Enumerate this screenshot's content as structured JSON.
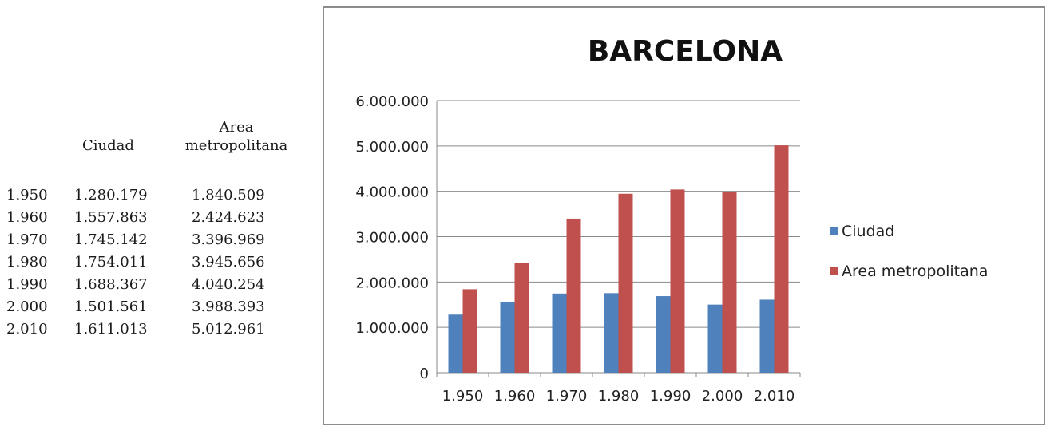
{
  "table": {
    "header_ciudad": "Ciudad",
    "header_area_line1": "Area",
    "header_area_line2": "metropolitana",
    "rows": [
      {
        "year": "1.950",
        "ciudad": "1.280.179",
        "area": "1.840.509"
      },
      {
        "year": "1.960",
        "ciudad": "1.557.863",
        "area": "2.424.623"
      },
      {
        "year": "1.970",
        "ciudad": "1.745.142",
        "area": "3.396.969"
      },
      {
        "year": "1.980",
        "ciudad": "1.754.011",
        "area": "3.945.656"
      },
      {
        "year": "1.990",
        "ciudad": "1.688.367",
        "area": "4.040.254"
      },
      {
        "year": "2.000",
        "ciudad": "1.501.561",
        "area": "3.988.393"
      },
      {
        "year": "2.010",
        "ciudad": "1.611.013",
        "area": "5.012.961"
      }
    ]
  },
  "chart_data": {
    "type": "bar",
    "title": "BARCELONA",
    "categories": [
      "1.950",
      "1.960",
      "1.970",
      "1.980",
      "1.990",
      "2.000",
      "2.010"
    ],
    "series": [
      {
        "name": "Ciudad",
        "color": "#4f81bd",
        "values": [
          1280179,
          1557863,
          1745142,
          1754011,
          1688367,
          1501561,
          1611013
        ]
      },
      {
        "name": "Area metropolitana",
        "color": "#c0504d",
        "values": [
          1840509,
          2424623,
          3396969,
          3945656,
          4040254,
          3988393,
          5012961
        ]
      }
    ],
    "ylim": [
      0,
      6000000
    ],
    "yticks": [
      0,
      1000000,
      2000000,
      3000000,
      4000000,
      5000000,
      6000000
    ],
    "ytick_labels": [
      "0",
      "1.000.000",
      "2.000.000",
      "3.000.000",
      "4.000.000",
      "5.000.000",
      "6.000.000"
    ],
    "grid": true,
    "legend_position": "right"
  }
}
